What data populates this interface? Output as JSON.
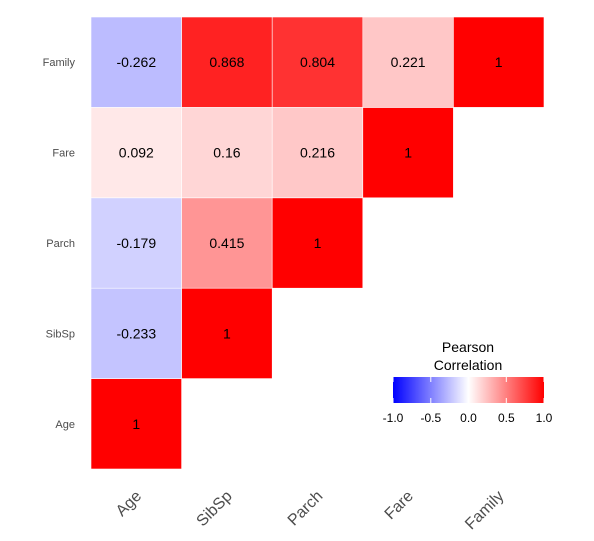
{
  "chart_data": {
    "type": "heatmap",
    "title": "",
    "x_categories": [
      "Age",
      "SibSp",
      "Parch",
      "Fare",
      "Family"
    ],
    "y_categories": [
      "Age",
      "SibSp",
      "Parch",
      "Fare",
      "Family"
    ],
    "cells": [
      {
        "x": "Age",
        "y": "Age",
        "value": 1,
        "label": "1"
      },
      {
        "x": "Age",
        "y": "SibSp",
        "value": -0.233,
        "label": "-0.233"
      },
      {
        "x": "Age",
        "y": "Parch",
        "value": -0.179,
        "label": "-0.179"
      },
      {
        "x": "Age",
        "y": "Fare",
        "value": 0.092,
        "label": "0.092"
      },
      {
        "x": "Age",
        "y": "Family",
        "value": -0.262,
        "label": "-0.262"
      },
      {
        "x": "SibSp",
        "y": "SibSp",
        "value": 1,
        "label": "1"
      },
      {
        "x": "SibSp",
        "y": "Parch",
        "value": 0.415,
        "label": "0.415"
      },
      {
        "x": "SibSp",
        "y": "Fare",
        "value": 0.16,
        "label": "0.16"
      },
      {
        "x": "SibSp",
        "y": "Family",
        "value": 0.868,
        "label": "0.868"
      },
      {
        "x": "Parch",
        "y": "Parch",
        "value": 1,
        "label": "1"
      },
      {
        "x": "Parch",
        "y": "Fare",
        "value": 0.216,
        "label": "0.216"
      },
      {
        "x": "Parch",
        "y": "Family",
        "value": 0.804,
        "label": "0.804"
      },
      {
        "x": "Fare",
        "y": "Fare",
        "value": 1,
        "label": "1"
      },
      {
        "x": "Fare",
        "y": "Family",
        "value": 0.221,
        "label": "0.221"
      },
      {
        "x": "Family",
        "y": "Family",
        "value": 1,
        "label": "1"
      }
    ],
    "legend": {
      "title_lines": [
        "Pearson",
        "Correlation"
      ],
      "ticks": [
        -1.0,
        -0.5,
        0.0,
        0.5,
        1.0
      ],
      "tick_labels": [
        "-1.0",
        "-0.5",
        "0.0",
        "0.5",
        "1.0"
      ],
      "limits": [
        -1,
        1
      ],
      "placement": "bottom-right"
    },
    "colors": {
      "low": "#0000ff",
      "mid": "#ffffff",
      "high": "#ff0000"
    },
    "grid": false
  }
}
